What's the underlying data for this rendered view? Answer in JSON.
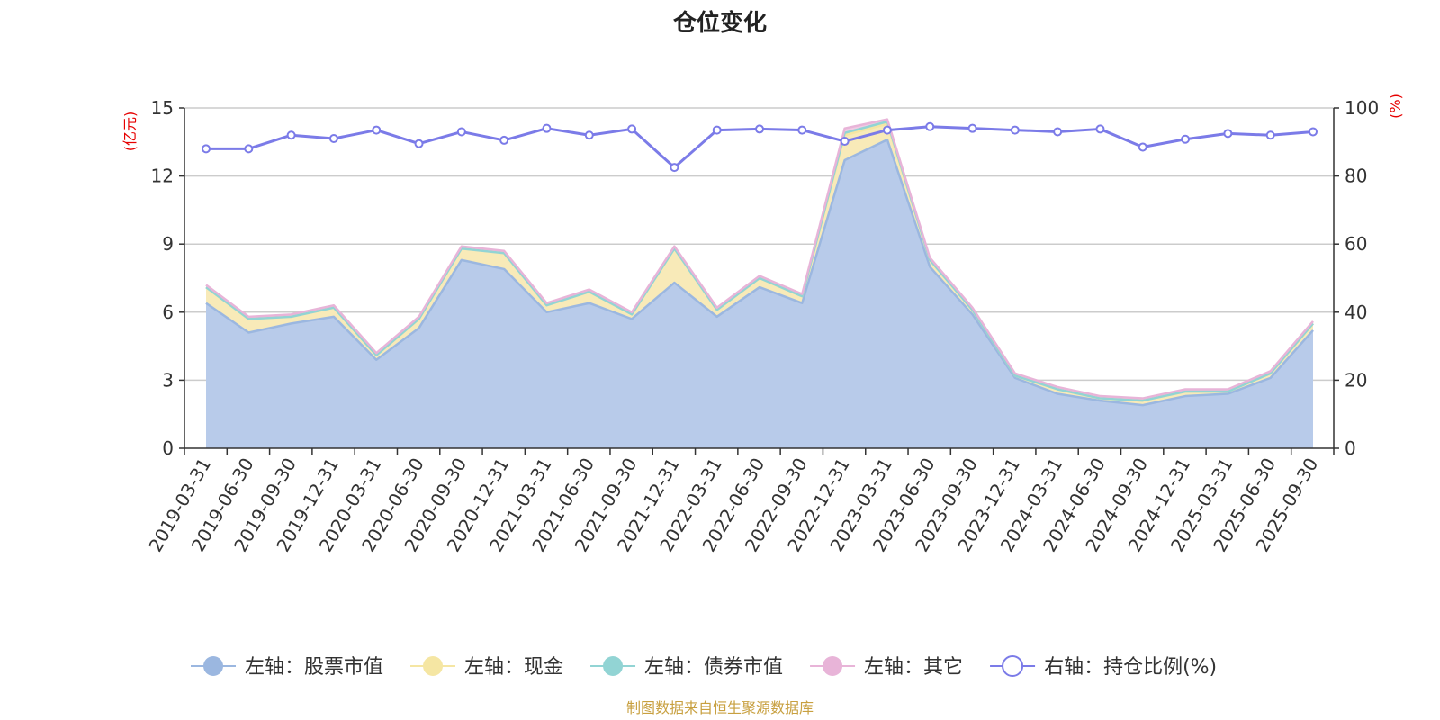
{
  "chart_data": {
    "type": "area",
    "title": "仓位变化",
    "left_axis": {
      "unit": "(亿元)",
      "ylim": [
        0,
        15
      ],
      "ticks": [
        "0",
        "3",
        "6",
        "9",
        "12",
        "15"
      ]
    },
    "right_axis": {
      "unit": "(%)",
      "ylim": [
        0,
        100
      ],
      "ticks": [
        "0",
        "20",
        "40",
        "60",
        "80",
        "100"
      ]
    },
    "x_labels": [
      "2019-03-31",
      "2019-06-30",
      "2019-09-30",
      "2019-12-31",
      "2020-03-31",
      "2020-06-30",
      "2020-09-30",
      "2020-12-31",
      "2021-03-31",
      "2021-06-30",
      "2021-09-30",
      "2021-12-31",
      "2022-03-31",
      "2022-06-30",
      "2022-09-30",
      "2022-12-31",
      "2023-03-31",
      "2023-06-30",
      "2023-09-30",
      "2023-12-31",
      "2024-03-31",
      "2024-06-30",
      "2024-09-30",
      "2024-12-31",
      "2025-03-31",
      "2025-06-30",
      "2025-09-30"
    ],
    "series": [
      {
        "name": "左轴：股票市值",
        "axis": "left",
        "stack": true,
        "color": "#9bb7e0",
        "fill": "#b8cbea",
        "values": [
          6.4,
          5.1,
          5.5,
          5.8,
          3.9,
          5.3,
          8.3,
          7.9,
          6.0,
          6.4,
          5.7,
          7.3,
          5.8,
          7.1,
          6.4,
          12.7,
          13.6,
          8.0,
          5.9,
          3.1,
          2.4,
          2.1,
          1.9,
          2.3,
          2.4,
          3.1,
          5.2
        ]
      },
      {
        "name": "左轴：现金",
        "axis": "left",
        "stack": true,
        "color": "#f5e6a3",
        "fill": "#f8eab8",
        "values": [
          0.7,
          0.6,
          0.3,
          0.4,
          0.2,
          0.4,
          0.5,
          0.7,
          0.3,
          0.5,
          0.2,
          1.5,
          0.3,
          0.4,
          0.3,
          1.1,
          0.7,
          0.3,
          0.2,
          0.1,
          0.2,
          0.1,
          0.2,
          0.2,
          0.1,
          0.2,
          0.3
        ]
      },
      {
        "name": "左轴：债券市值",
        "axis": "left",
        "stack": true,
        "color": "#92d4d4",
        "fill": "#a8dcdc",
        "values": [
          0,
          0,
          0,
          0,
          0,
          0,
          0,
          0,
          0,
          0,
          0,
          0,
          0,
          0,
          0,
          0.1,
          0.1,
          0,
          0,
          0,
          0,
          0,
          0,
          0,
          0,
          0,
          0
        ]
      },
      {
        "name": "左轴：其它",
        "axis": "left",
        "stack": true,
        "color": "#e8b4d8",
        "fill": "#f0cce4",
        "values": [
          0.1,
          0.1,
          0.1,
          0.1,
          0.1,
          0.1,
          0.1,
          0.1,
          0.1,
          0.1,
          0.1,
          0.1,
          0.1,
          0.1,
          0.1,
          0.2,
          0.1,
          0.1,
          0.1,
          0.1,
          0.1,
          0.1,
          0.1,
          0.1,
          0.1,
          0.1,
          0.1
        ]
      },
      {
        "name": "右轴：持仓比例(%)",
        "axis": "right",
        "type": "line",
        "color": "#7b7be8",
        "values": [
          88,
          88,
          92,
          91,
          93.5,
          89.5,
          93,
          90.5,
          94,
          92,
          93.8,
          82.5,
          93.5,
          93.8,
          93.5,
          90.2,
          93.5,
          94.5,
          94,
          93.5,
          93,
          93.8,
          88.5,
          90.8,
          92.5,
          92,
          93
        ]
      }
    ],
    "legend_position": "bottom",
    "grid": true,
    "source_note": "制图数据来自恒生聚源数据库"
  }
}
